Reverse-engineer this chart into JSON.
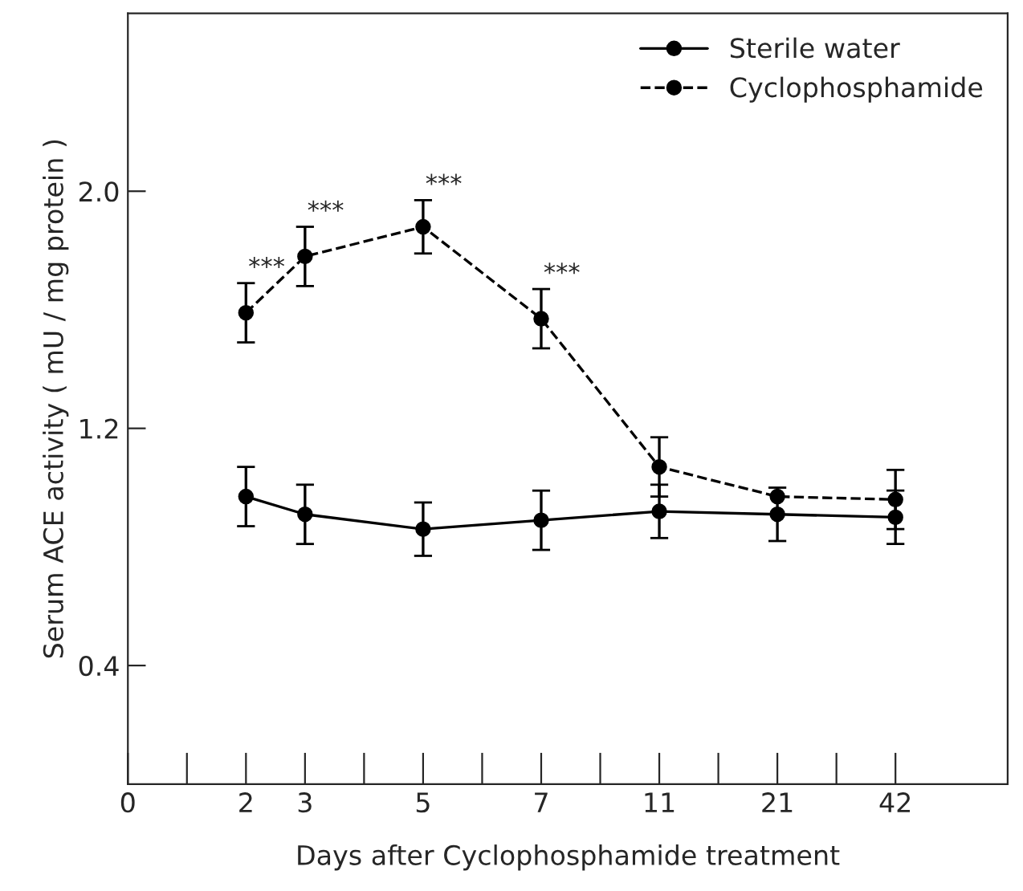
{
  "chart_data": {
    "type": "line",
    "xlabel": "Days after Cyclophosphamide treatment",
    "ylabel": "Serum ACE activity ( mU / mg protein )",
    "categories": [
      "0",
      null,
      "2",
      "3",
      null,
      "5",
      null,
      "7",
      null,
      "11",
      null,
      "21",
      null,
      "42"
    ],
    "series": [
      {
        "name": "Sterile water",
        "color": "#000000",
        "line_style": "solid",
        "values": [
          null,
          null,
          0.97,
          0.91,
          null,
          0.86,
          null,
          0.89,
          null,
          0.92,
          null,
          0.91,
          null,
          0.9
        ],
        "errors": [
          null,
          null,
          0.1,
          0.1,
          null,
          0.09,
          null,
          0.1,
          null,
          0.09,
          null,
          0.09,
          null,
          0.09
        ]
      },
      {
        "name": "Cyclophosphamide",
        "color": "#000000",
        "line_style": "dashed",
        "values": [
          null,
          null,
          1.59,
          1.78,
          null,
          1.88,
          null,
          1.57,
          null,
          1.07,
          null,
          0.97,
          null,
          0.96
        ],
        "errors": [
          null,
          null,
          0.1,
          0.1,
          null,
          0.09,
          null,
          0.1,
          null,
          0.1,
          null,
          null,
          null,
          0.1
        ]
      }
    ],
    "annotations": [
      "***",
      "***",
      "***",
      "***"
    ],
    "ylim": [
      0,
      2.6
    ],
    "yticks": [
      0.4,
      1.2,
      {
        "value": 2.0,
        "label": "2.0"
      }
    ],
    "marker": "circle",
    "legend": "top right",
    "grid": false
  }
}
